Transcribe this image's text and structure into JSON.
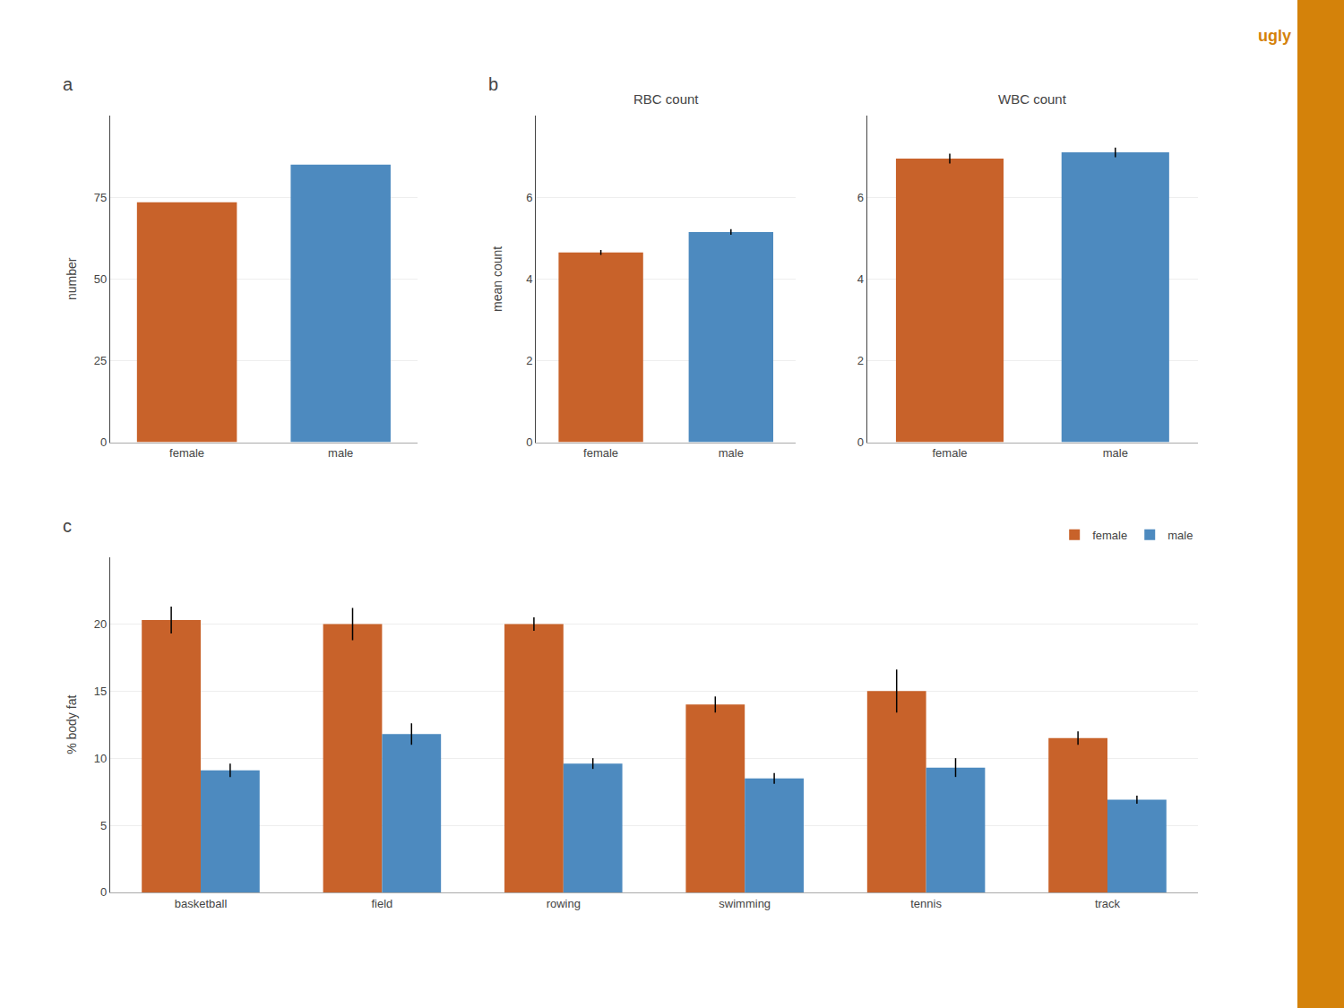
{
  "chart_data": [
    {
      "type": "bar",
      "categories": [
        "female",
        "male"
      ],
      "values": [
        73.5,
        85.0
      ],
      "colors": [
        "#C8622A",
        "#4D8ABF"
      ],
      "ylabel": "number",
      "ylim": [
        0,
        100
      ],
      "yticks": [
        0,
        25,
        50,
        75
      ],
      "grid": true,
      "annotations": [
        {
          "text": "a"
        }
      ]
    },
    {
      "type": "bar",
      "title": "RBC count",
      "categories": [
        "female",
        "male"
      ],
      "values": [
        4.65,
        5.15
      ],
      "errors": [
        0.06,
        0.07
      ],
      "colors": [
        "#C8622A",
        "#4D8ABF"
      ],
      "ylabel": "mean count",
      "ylim": [
        0,
        8
      ],
      "yticks": [
        0,
        2,
        4,
        6
      ],
      "grid": true,
      "annotations": [
        {
          "text": "b"
        }
      ]
    },
    {
      "type": "bar",
      "title": "WBC count",
      "categories": [
        "female",
        "male"
      ],
      "values": [
        6.95,
        7.1
      ],
      "errors": [
        0.12,
        0.12
      ],
      "colors": [
        "#C8622A",
        "#4D8ABF"
      ],
      "ylim": [
        0,
        8
      ],
      "yticks": [
        0,
        2,
        4,
        6
      ],
      "grid": true,
      "annotations": [
        {
          "text": "ugly",
          "color": "#D4820A"
        }
      ]
    },
    {
      "type": "bar",
      "categories": [
        "basketball",
        "field",
        "rowing",
        "swimming",
        "tennis",
        "track"
      ],
      "series": [
        {
          "name": "female",
          "color": "#C8622A",
          "values": [
            20.3,
            20.0,
            20.0,
            14.0,
            15.0,
            11.5
          ],
          "errors": [
            1.0,
            1.2,
            0.5,
            0.6,
            1.6,
            0.5
          ]
        },
        {
          "name": "male",
          "color": "#4D8ABF",
          "values": [
            9.1,
            11.8,
            9.6,
            8.5,
            9.3,
            6.9
          ],
          "errors": [
            0.5,
            0.8,
            0.4,
            0.4,
            0.7,
            0.3
          ]
        }
      ],
      "ylabel": "% body fat",
      "ylim": [
        0,
        25
      ],
      "yticks": [
        0,
        5,
        10,
        15,
        20
      ],
      "grid": true,
      "legend": "upper right",
      "annotations": [
        {
          "text": "c"
        }
      ]
    }
  ]
}
